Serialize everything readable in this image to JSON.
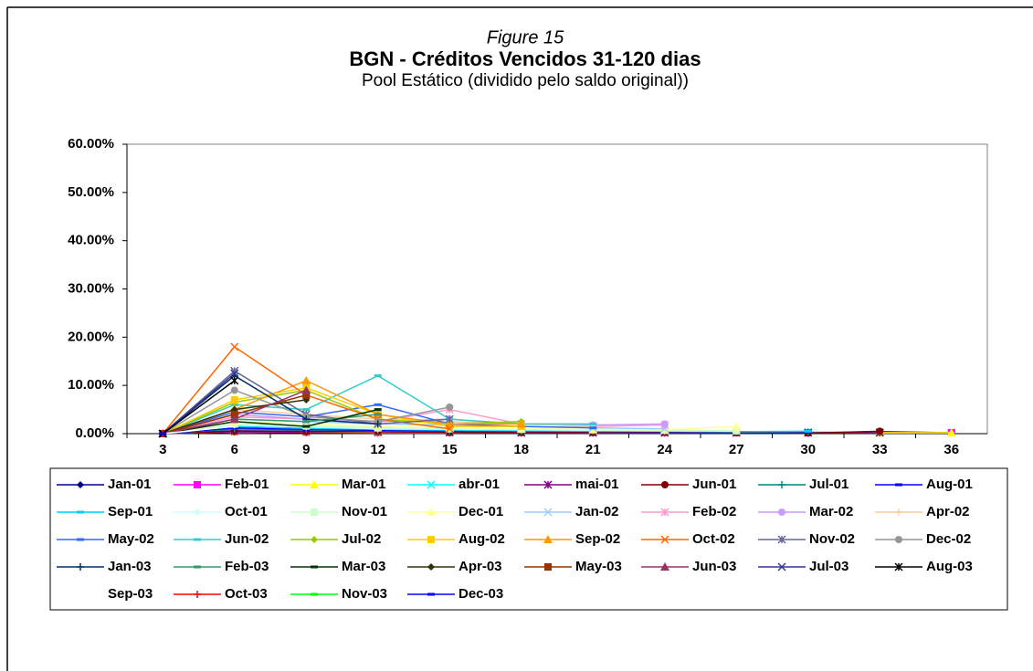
{
  "chart_data": {
    "type": "line",
    "figure_label": "Figure 15",
    "title": "BGN - Créditos Vencidos 31-120 dias",
    "subtitle": "Pool Estático (dividido pelo saldo original))",
    "categories": [
      "3",
      "6",
      "9",
      "12",
      "15",
      "18",
      "21",
      "24",
      "27",
      "30",
      "33",
      "36"
    ],
    "ylim": [
      0,
      60
    ],
    "yticks": [
      {
        "value": 0,
        "label": "0.00%"
      },
      {
        "value": 10,
        "label": "10.00%"
      },
      {
        "value": 20,
        "label": "20.00%"
      },
      {
        "value": 30,
        "label": "30.00%"
      },
      {
        "value": 40,
        "label": "40.00%"
      },
      {
        "value": 50,
        "label": "50.00%"
      },
      {
        "value": 60,
        "label": "60.00%"
      }
    ],
    "series": [
      {
        "name": "Jan-01",
        "color": "#000080",
        "marker": "diamond",
        "values": [
          0,
          0.3,
          0.2,
          0.1,
          0.1,
          0.1,
          0.1,
          0.1,
          0.1,
          0.1,
          0.4,
          0.2
        ]
      },
      {
        "name": "Feb-01",
        "color": "#ff00ff",
        "marker": "square",
        "values": [
          0,
          0.4,
          0.3,
          0.2,
          0.2,
          0.2,
          0.2,
          0.2,
          0.2,
          0.2,
          0.2,
          0.2
        ]
      },
      {
        "name": "Mar-01",
        "color": "#ffff00",
        "marker": "triangle",
        "values": [
          0,
          0.5,
          0.4,
          0.3,
          0.3,
          0.3,
          0.3,
          0.3,
          0.3,
          0.3,
          0.2,
          0.2
        ]
      },
      {
        "name": "abr-01",
        "color": "#00ffff",
        "marker": "x",
        "values": [
          0,
          0.8,
          0.6,
          0.5,
          0.4,
          0.4,
          0.4,
          0.4,
          0.3,
          0.3,
          0.3,
          null
        ]
      },
      {
        "name": "mai-01",
        "color": "#800080",
        "marker": "star",
        "values": [
          0,
          0.6,
          0.5,
          0.4,
          0.3,
          0.2,
          0.2,
          0.2,
          0.2,
          0.2,
          0.2,
          null
        ]
      },
      {
        "name": "Jun-01",
        "color": "#800000",
        "marker": "circle",
        "values": [
          0,
          0.5,
          0.4,
          0.4,
          0.3,
          0.3,
          0.3,
          0.3,
          0.2,
          0.1,
          0.5,
          null
        ]
      },
      {
        "name": "Jul-01",
        "color": "#008080",
        "marker": "plus",
        "values": [
          0,
          1.0,
          0.8,
          0.6,
          0.5,
          0.5,
          0.5,
          0.4,
          0.4,
          0.3,
          null,
          null
        ]
      },
      {
        "name": "Aug-01",
        "color": "#0000ff",
        "marker": "dash",
        "values": [
          0,
          1.2,
          0.9,
          0.7,
          0.6,
          0.5,
          0.5,
          0.4,
          0.4,
          0.4,
          null,
          null
        ]
      },
      {
        "name": "Sep-01",
        "color": "#00ccff",
        "marker": "dash",
        "values": [
          0,
          1.5,
          1.1,
          0.9,
          0.7,
          0.6,
          0.5,
          0.5,
          0.4,
          0.5,
          null,
          null
        ]
      },
      {
        "name": "Oct-01",
        "color": "#ccffff",
        "marker": "diamond",
        "values": [
          0,
          1.8,
          1.4,
          1.0,
          0.9,
          0.8,
          0.7,
          0.6,
          0.5,
          null,
          null,
          null
        ]
      },
      {
        "name": "Nov-01",
        "color": "#ccffcc",
        "marker": "square",
        "values": [
          0,
          2.0,
          1.6,
          1.2,
          1.0,
          0.9,
          0.8,
          0.7,
          0.6,
          null,
          null,
          null
        ]
      },
      {
        "name": "Dec-01",
        "color": "#ffff99",
        "marker": "triangle",
        "values": [
          0,
          2.5,
          2.0,
          1.5,
          1.2,
          1.0,
          0.9,
          0.8,
          1.5,
          null,
          null,
          null
        ]
      },
      {
        "name": "Jan-02",
        "color": "#99ccff",
        "marker": "x",
        "values": [
          0,
          3.0,
          2.5,
          2.0,
          1.8,
          1.5,
          1.2,
          1.0,
          null,
          null,
          null,
          null
        ]
      },
      {
        "name": "Feb-02",
        "color": "#ff99cc",
        "marker": "star",
        "values": [
          0,
          3.5,
          3.0,
          2.5,
          5.0,
          2.0,
          1.5,
          1.8,
          null,
          null,
          null,
          null
        ]
      },
      {
        "name": "Mar-02",
        "color": "#cc99ff",
        "marker": "circle",
        "values": [
          0,
          4.0,
          3.0,
          2.5,
          3.0,
          2.0,
          1.8,
          2.0,
          null,
          null,
          null,
          null
        ]
      },
      {
        "name": "Apr-02",
        "color": "#ffcc99",
        "marker": "plus",
        "values": [
          0,
          5.0,
          4.0,
          3.0,
          2.5,
          2.0,
          1.5,
          null,
          null,
          null,
          null,
          null
        ]
      },
      {
        "name": "May-02",
        "color": "#3366ff",
        "marker": "dash",
        "values": [
          0,
          4.5,
          3.5,
          6.0,
          2.0,
          1.5,
          1.2,
          null,
          null,
          null,
          null,
          null
        ]
      },
      {
        "name": "Jun-02",
        "color": "#33cccc",
        "marker": "dash",
        "values": [
          0,
          6.0,
          5.0,
          12.0,
          3.0,
          2.0,
          2.0,
          null,
          null,
          null,
          null,
          null
        ]
      },
      {
        "name": "Jul-02",
        "color": "#99cc00",
        "marker": "diamond",
        "values": [
          0,
          6.5,
          9.0,
          3.0,
          2.0,
          2.5,
          null,
          null,
          null,
          null,
          null,
          null
        ]
      },
      {
        "name": "Aug-02",
        "color": "#ffcc00",
        "marker": "square",
        "values": [
          0,
          7.0,
          9.5,
          4.0,
          1.5,
          1.5,
          null,
          null,
          null,
          null,
          null,
          null
        ]
      },
      {
        "name": "Sep-02",
        "color": "#ff9900",
        "marker": "triangle",
        "values": [
          0,
          5.0,
          11.0,
          4.0,
          2.0,
          2.0,
          null,
          null,
          null,
          null,
          null,
          null
        ]
      },
      {
        "name": "Oct-02",
        "color": "#ff6600",
        "marker": "x",
        "values": [
          0,
          18.0,
          8.0,
          3.0,
          1.0,
          null,
          null,
          null,
          null,
          null,
          null,
          null
        ]
      },
      {
        "name": "Nov-02",
        "color": "#666699",
        "marker": "star",
        "values": [
          0,
          13.0,
          4.0,
          2.0,
          3.0,
          null,
          null,
          null,
          null,
          null,
          null,
          null
        ]
      },
      {
        "name": "Dec-02",
        "color": "#969696",
        "marker": "circle",
        "values": [
          0,
          9.0,
          3.5,
          2.5,
          5.5,
          null,
          null,
          null,
          null,
          null,
          null,
          null
        ]
      },
      {
        "name": "Jan-03",
        "color": "#003366",
        "marker": "plus",
        "values": [
          0,
          12.0,
          3.0,
          2.0,
          null,
          null,
          null,
          null,
          null,
          null,
          null,
          null
        ]
      },
      {
        "name": "Feb-03",
        "color": "#339966",
        "marker": "dash",
        "values": [
          0,
          3.0,
          2.5,
          4.0,
          null,
          null,
          null,
          null,
          null,
          null,
          null,
          null
        ]
      },
      {
        "name": "Mar-03",
        "color": "#003300",
        "marker": "dash",
        "values": [
          0,
          2.5,
          1.5,
          5.0,
          null,
          null,
          null,
          null,
          null,
          null,
          null,
          null
        ]
      },
      {
        "name": "Apr-03",
        "color": "#333300",
        "marker": "diamond",
        "values": [
          0,
          5.0,
          7.0,
          null,
          null,
          null,
          null,
          null,
          null,
          null,
          null,
          null
        ]
      },
      {
        "name": "May-03",
        "color": "#993300",
        "marker": "square",
        "values": [
          0,
          4.0,
          8.0,
          null,
          null,
          null,
          null,
          null,
          null,
          null,
          null,
          null
        ]
      },
      {
        "name": "Jun-03",
        "color": "#993366",
        "marker": "triangle",
        "values": [
          0,
          3.0,
          9.0,
          null,
          null,
          null,
          null,
          null,
          null,
          null,
          null,
          null
        ]
      },
      {
        "name": "Jul-03",
        "color": "#333399",
        "marker": "x",
        "values": [
          0,
          12.5,
          null,
          null,
          null,
          null,
          null,
          null,
          null,
          null,
          null,
          null
        ]
      },
      {
        "name": "Aug-03",
        "color": "#000000",
        "marker": "star",
        "values": [
          0,
          11.0,
          null,
          null,
          null,
          null,
          null,
          null,
          null,
          null,
          null,
          null
        ]
      },
      {
        "name": "Sep-03",
        "color": "#ffffff",
        "marker": "none",
        "values": [
          0,
          1.5,
          null,
          null,
          null,
          null,
          null,
          null,
          null,
          null,
          null,
          null
        ]
      },
      {
        "name": "Oct-03",
        "color": "#ff0000",
        "marker": "plus",
        "values": [
          0,
          null,
          null,
          null,
          null,
          null,
          null,
          null,
          null,
          null,
          null,
          null
        ]
      },
      {
        "name": "Nov-03",
        "color": "#00ff00",
        "marker": "dash",
        "values": [
          0,
          null,
          null,
          null,
          null,
          null,
          null,
          null,
          null,
          null,
          null,
          null
        ]
      },
      {
        "name": "Dec-03",
        "color": "#0000ff",
        "marker": "dash",
        "values": [
          0,
          null,
          null,
          null,
          null,
          null,
          null,
          null,
          null,
          null,
          null,
          null
        ]
      }
    ]
  }
}
